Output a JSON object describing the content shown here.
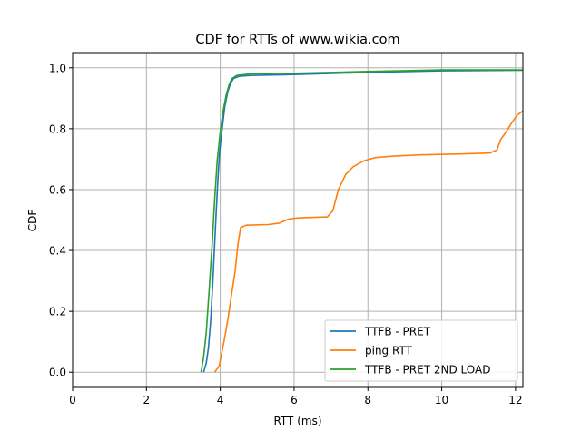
{
  "chart_data": {
    "type": "line",
    "title": "CDF for RTTs of www.wikia.com",
    "xlabel": "RTT (ms)",
    "ylabel": "CDF",
    "xlim": [
      0,
      12.2
    ],
    "ylim": [
      -0.05,
      1.05
    ],
    "x_ticks": [
      0,
      2,
      4,
      6,
      8,
      10,
      12
    ],
    "y_ticks": [
      0.0,
      0.2,
      0.4,
      0.6,
      0.8,
      1.0
    ],
    "x_tick_labels": [
      "0",
      "2",
      "4",
      "6",
      "8",
      "10",
      "12"
    ],
    "y_tick_labels": [
      "0.0",
      "0.2",
      "0.4",
      "0.6",
      "0.8",
      "1.0"
    ],
    "grid": true,
    "legend_position": "lower-right",
    "series": [
      {
        "name": "TTFB - PRET",
        "color": "#1f77b4",
        "points": [
          [
            3.55,
            0.0
          ],
          [
            3.62,
            0.03
          ],
          [
            3.68,
            0.08
          ],
          [
            3.74,
            0.17
          ],
          [
            3.8,
            0.3
          ],
          [
            3.86,
            0.45
          ],
          [
            3.92,
            0.6
          ],
          [
            3.98,
            0.72
          ],
          [
            4.05,
            0.8
          ],
          [
            4.12,
            0.87
          ],
          [
            4.2,
            0.92
          ],
          [
            4.28,
            0.95
          ],
          [
            4.36,
            0.965
          ],
          [
            4.5,
            0.972
          ],
          [
            4.8,
            0.975
          ],
          [
            6.0,
            0.978
          ],
          [
            8.0,
            0.985
          ],
          [
            10.0,
            0.99
          ],
          [
            12.2,
            0.992
          ]
        ]
      },
      {
        "name": "ping RTT",
        "color": "#ff7f0e",
        "points": [
          [
            3.85,
            0.0
          ],
          [
            3.97,
            0.02
          ],
          [
            4.1,
            0.1
          ],
          [
            4.2,
            0.17
          ],
          [
            4.3,
            0.25
          ],
          [
            4.4,
            0.33
          ],
          [
            4.48,
            0.42
          ],
          [
            4.55,
            0.475
          ],
          [
            4.7,
            0.483
          ],
          [
            5.3,
            0.485
          ],
          [
            5.6,
            0.49
          ],
          [
            5.85,
            0.503
          ],
          [
            6.1,
            0.507
          ],
          [
            6.9,
            0.51
          ],
          [
            7.05,
            0.53
          ],
          [
            7.2,
            0.6
          ],
          [
            7.4,
            0.65
          ],
          [
            7.6,
            0.675
          ],
          [
            7.9,
            0.695
          ],
          [
            8.2,
            0.705
          ],
          [
            8.7,
            0.71
          ],
          [
            9.4,
            0.714
          ],
          [
            10.5,
            0.717
          ],
          [
            11.3,
            0.72
          ],
          [
            11.5,
            0.73
          ],
          [
            11.6,
            0.765
          ],
          [
            11.75,
            0.79
          ],
          [
            11.9,
            0.82
          ],
          [
            12.05,
            0.845
          ],
          [
            12.2,
            0.858
          ]
        ]
      },
      {
        "name": "TTFB - PRET 2ND LOAD",
        "color": "#2ca02c",
        "points": [
          [
            3.48,
            0.0
          ],
          [
            3.55,
            0.05
          ],
          [
            3.62,
            0.13
          ],
          [
            3.7,
            0.27
          ],
          [
            3.78,
            0.42
          ],
          [
            3.85,
            0.57
          ],
          [
            3.92,
            0.7
          ],
          [
            4.0,
            0.79
          ],
          [
            4.08,
            0.86
          ],
          [
            4.16,
            0.91
          ],
          [
            4.24,
            0.945
          ],
          [
            4.32,
            0.965
          ],
          [
            4.45,
            0.975
          ],
          [
            4.8,
            0.98
          ],
          [
            6.0,
            0.982
          ],
          [
            8.0,
            0.988
          ],
          [
            10.0,
            0.993
          ],
          [
            12.2,
            0.993
          ]
        ]
      }
    ]
  }
}
